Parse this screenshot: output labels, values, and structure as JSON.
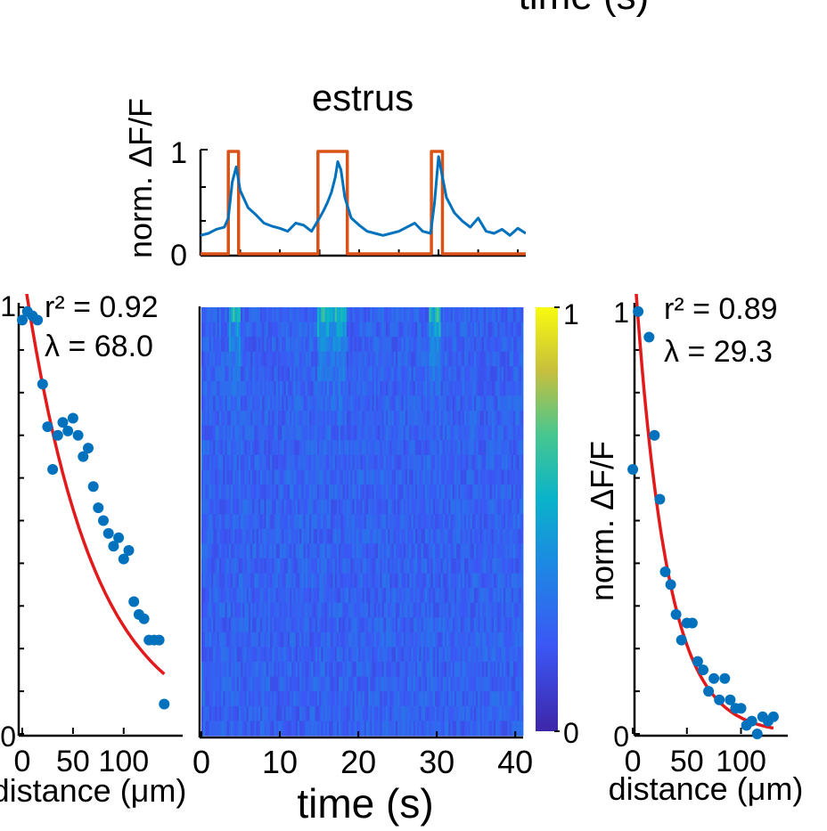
{
  "figure": {
    "top_cut_label": "time (s)"
  },
  "chart_data": [
    {
      "id": "trace",
      "type": "line",
      "title": "estrus",
      "ylabel": "norm. ΔF/F",
      "xlim": [
        0,
        41
      ],
      "ylim": [
        0,
        1
      ],
      "y_ticks": [
        "0",
        "1"
      ],
      "series": [
        {
          "kind": "stimulus",
          "color": "#D95319",
          "x": [
            0,
            3.5,
            3.5,
            4.8,
            4.8,
            14.8,
            14.8,
            18.5,
            18.5,
            29.1,
            29.1,
            30.5,
            30.5,
            41
          ],
          "values": [
            0,
            0,
            1,
            1,
            0,
            0,
            1,
            1,
            0,
            0,
            1,
            1,
            0,
            0
          ]
        },
        {
          "kind": "response",
          "color": "#0072BD",
          "x": [
            0,
            1,
            2,
            3,
            3.5,
            4,
            4.5,
            5,
            6,
            7,
            8,
            9,
            10,
            11,
            12,
            13,
            14,
            15,
            15.5,
            16,
            16.5,
            17,
            17.3,
            17.7,
            18.2,
            19,
            20,
            21,
            22,
            23,
            24,
            25,
            26,
            27,
            28,
            29,
            29.5,
            30,
            30.5,
            31,
            32,
            33,
            34,
            35,
            36,
            37,
            38,
            39,
            40,
            41
          ],
          "values": [
            0.18,
            0.2,
            0.24,
            0.26,
            0.35,
            0.7,
            0.85,
            0.62,
            0.45,
            0.38,
            0.3,
            0.27,
            0.25,
            0.22,
            0.3,
            0.28,
            0.22,
            0.35,
            0.42,
            0.5,
            0.6,
            0.75,
            0.9,
            0.82,
            0.55,
            0.35,
            0.28,
            0.22,
            0.2,
            0.18,
            0.2,
            0.22,
            0.26,
            0.3,
            0.22,
            0.2,
            0.5,
            0.95,
            0.75,
            0.55,
            0.4,
            0.32,
            0.26,
            0.35,
            0.22,
            0.2,
            0.24,
            0.18,
            0.25,
            0.2
          ]
        }
      ]
    },
    {
      "id": "left_decay",
      "type": "scatter",
      "xlabel": "distance (μm)",
      "x_ticks": [
        0,
        50,
        100
      ],
      "xlim": [
        0,
        145
      ],
      "ylim": [
        0,
        1
      ],
      "y_ticks": [
        "0",
        "1"
      ],
      "annotation_r2": "r² = 0.92",
      "annotation_lambda": "λ = 68.0",
      "points_color": "#0072BD",
      "fit_color": "#E31A1C",
      "points": {
        "x": [
          0,
          5,
          10,
          15,
          20,
          25,
          30,
          35,
          40,
          45,
          50,
          55,
          60,
          65,
          70,
          75,
          80,
          85,
          90,
          95,
          100,
          105,
          110,
          115,
          120,
          125,
          130,
          135,
          140
        ],
        "y": [
          0.97,
          0.99,
          0.98,
          0.97,
          0.82,
          0.72,
          0.62,
          0.7,
          0.73,
          0.71,
          0.74,
          0.7,
          0.65,
          0.67,
          0.58,
          0.53,
          0.5,
          0.47,
          0.44,
          0.46,
          0.41,
          0.43,
          0.31,
          0.28,
          0.27,
          0.22,
          0.22,
          0.22,
          0.07
        ]
      },
      "fit": {
        "a": 1.1,
        "lambda": 68.0
      }
    },
    {
      "id": "heatmap",
      "type": "heatmap",
      "xlabel": "time (s)",
      "x_ticks": [
        0,
        10,
        20,
        30,
        40
      ],
      "xlim": [
        0,
        41
      ],
      "colorbar_ticks": [
        "0",
        "1"
      ],
      "colormap": "parula",
      "rows": 29,
      "columns": 164,
      "hot_bands_s": [
        [
          3.5,
          5.0
        ],
        [
          14.8,
          18.5
        ],
        [
          29.1,
          30.5
        ]
      ]
    },
    {
      "id": "right_decay",
      "type": "scatter",
      "xlabel": "distance (μm)",
      "ylabel": "norm. ΔF/F",
      "x_ticks": [
        0,
        50,
        100
      ],
      "xlim": [
        -5,
        135
      ],
      "ylim": [
        0,
        1
      ],
      "y_ticks": [
        "0",
        "1"
      ],
      "annotation_r2": "r² = 0.89",
      "annotation_lambda": "λ = 29.3",
      "points_color": "#0072BD",
      "fit_color": "#E31A1C",
      "points": {
        "x": [
          0,
          5,
          15,
          20,
          25,
          30,
          35,
          40,
          45,
          50,
          55,
          60,
          65,
          70,
          75,
          80,
          85,
          90,
          95,
          100,
          105,
          110,
          115,
          120,
          125,
          130
        ],
        "y": [
          0.62,
          0.99,
          0.93,
          0.7,
          0.55,
          0.38,
          0.35,
          0.28,
          0.22,
          0.26,
          0.26,
          0.17,
          0.15,
          0.1,
          0.13,
          0.08,
          0.13,
          0.08,
          0.06,
          0.06,
          0.02,
          0.03,
          0.0,
          0.04,
          0.03,
          0.04
        ]
      },
      "fit": {
        "a": 1.15,
        "lambda": 29.3
      }
    }
  ]
}
